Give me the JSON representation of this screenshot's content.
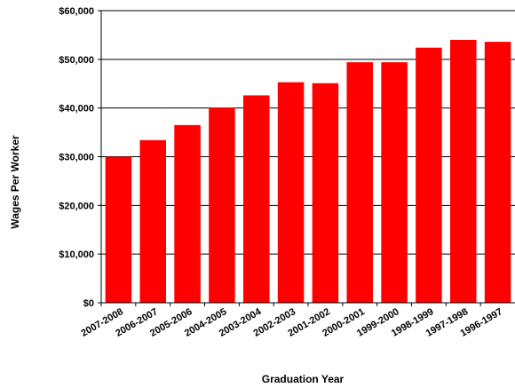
{
  "chart_data": {
    "type": "bar",
    "title": "",
    "xlabel": "Graduation Year",
    "ylabel": "Wages Per Worker",
    "categories": [
      "2007-2008",
      "2006-2007",
      "2005-2006",
      "2004-2005",
      "2003-2004",
      "2002-2003",
      "2001-2002",
      "2000-2001",
      "1999-2000",
      "1998-1999",
      "1997-1998",
      "1996-1997"
    ],
    "values": [
      30000,
      33400,
      36500,
      40100,
      42600,
      45300,
      45100,
      49400,
      49400,
      52400,
      54000,
      53600
    ],
    "ylim": [
      0,
      60000
    ],
    "yticks": [
      0,
      10000,
      20000,
      30000,
      40000,
      50000,
      60000
    ],
    "ytick_labels": [
      "$0",
      "$10,000",
      "$20,000",
      "$30,000",
      "$40,000",
      "$50,000",
      "$60,000"
    ],
    "bar_color": "#ff0000",
    "gridlines": true,
    "legend": "none"
  }
}
